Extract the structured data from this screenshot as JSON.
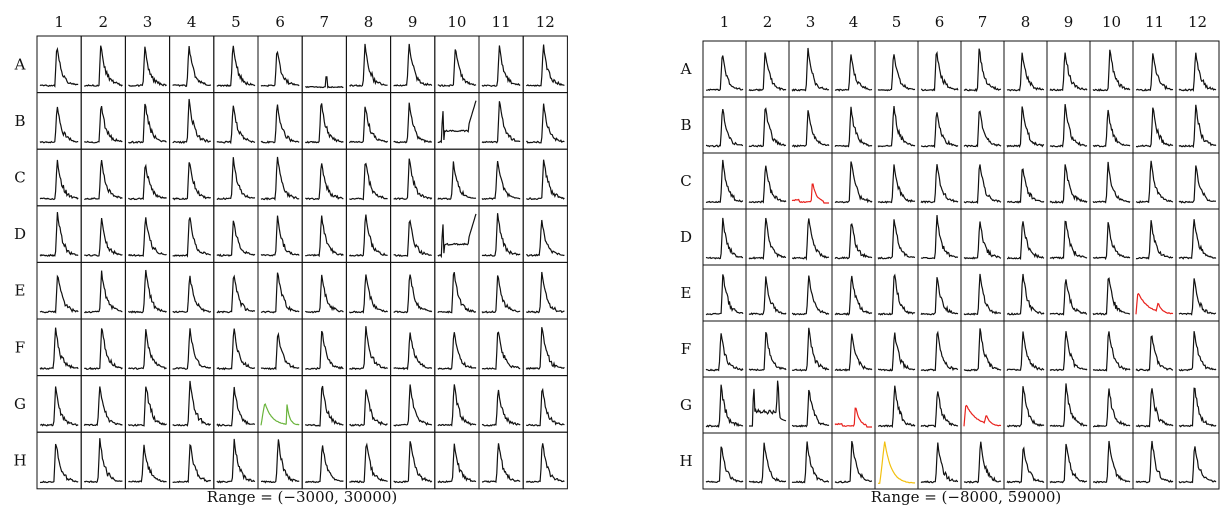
{
  "chart_data": [
    {
      "type": "line",
      "title": "",
      "columns": [
        "1",
        "2",
        "3",
        "4",
        "5",
        "6",
        "7",
        "8",
        "9",
        "10",
        "11",
        "12"
      ],
      "rows": [
        "A",
        "B",
        "C",
        "D",
        "E",
        "F",
        "G",
        "H"
      ],
      "range_label": "Range = (−3000, 30000)",
      "ylim": [
        -3000,
        30000
      ],
      "colors": {
        "normal": "#111111",
        "highlight_green": "#6ab43c"
      },
      "highlighted_wells": [
        {
          "well": "G6",
          "color": "#6ab43c",
          "shape": "double_peak_low"
        }
      ],
      "anomalous_wells": [
        {
          "well": "A7",
          "shape": "flat_baseline"
        },
        {
          "well": "B10",
          "shape": "spike_flat"
        },
        {
          "well": "D10",
          "shape": "spike_flat"
        }
      ]
    },
    {
      "type": "line",
      "title": "",
      "columns": [
        "1",
        "2",
        "3",
        "4",
        "5",
        "6",
        "7",
        "8",
        "9",
        "10",
        "11",
        "12"
      ],
      "rows": [
        "A",
        "B",
        "C",
        "D",
        "E",
        "F",
        "G",
        "H"
      ],
      "range_label": "Range = (−8000, 59000)",
      "ylim": [
        -8000,
        59000
      ],
      "colors": {
        "normal": "#111111",
        "highlight_red": "#e8221d",
        "highlight_yellow": "#f2c010"
      },
      "highlighted_wells": [
        {
          "well": "C3",
          "color": "#e8221d",
          "shape": "low_peak"
        },
        {
          "well": "E11",
          "color": "#e8221d",
          "shape": "low_double_peak"
        },
        {
          "well": "G4",
          "color": "#e8221d",
          "shape": "low_peak"
        },
        {
          "well": "G7",
          "color": "#e8221d",
          "shape": "low_double_peak"
        },
        {
          "well": "H5",
          "color": "#f2c010",
          "shape": "early_peak"
        }
      ],
      "anomalous_wells": [
        {
          "well": "G2",
          "shape": "noisy_spike"
        }
      ]
    }
  ]
}
